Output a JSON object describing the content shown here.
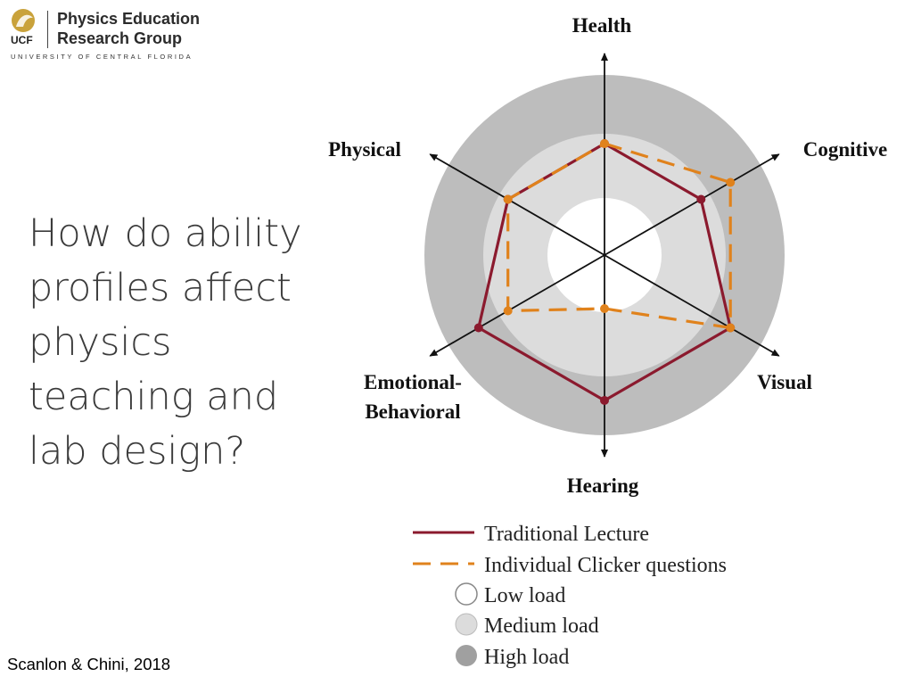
{
  "header": {
    "org_line1": "Physics Education",
    "org_line2": "Research Group",
    "abbrev": "UCF",
    "university": "UNIVERSITY OF CENTRAL FLORIDA"
  },
  "slide": {
    "question": "How do ability profiles affect physics teaching and lab design?",
    "citation": "Scanlon & Chini, 2018"
  },
  "colors": {
    "traditional": "#8b1a2e",
    "clicker": "#e0821c",
    "low": "#ffffff",
    "medium": "#dcdcdc",
    "high": "#bdbdbd"
  },
  "chart_data": {
    "type": "radar",
    "axes": [
      "Health",
      "Cognitive",
      "Visual",
      "Hearing",
      "Emotional-Behavioral",
      "Physical"
    ],
    "axis_labels": {
      "health": "Health",
      "cognitive": "Cognitive",
      "visual": "Visual",
      "hearing": "Hearing",
      "emotional_line1": "Emotional-",
      "emotional_line2": "Behavioral",
      "physical": "Physical"
    },
    "regions": [
      "Low load",
      "Medium load",
      "High load"
    ],
    "series": [
      {
        "name": "Traditional Lecture",
        "style": "solid",
        "values": [
          2,
          2,
          3,
          3,
          3,
          2
        ]
      },
      {
        "name": "Individual Clicker questions",
        "style": "dashed",
        "values": [
          2,
          3,
          3,
          1,
          2,
          2
        ]
      }
    ],
    "legend": {
      "position": "bottom",
      "lines": [
        "Traditional Lecture",
        "Individual Clicker questions"
      ],
      "regions": [
        "Low load",
        "Medium load",
        "High load"
      ]
    }
  }
}
